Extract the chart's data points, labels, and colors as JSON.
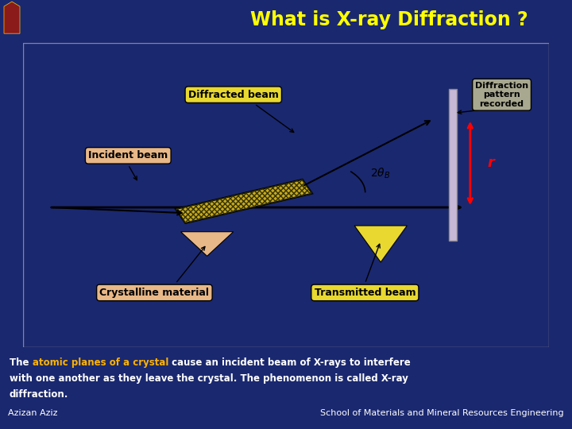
{
  "title": "What is X-ray Diffraction ?",
  "title_color": "#FFFF00",
  "header_bg": "#1a2870",
  "main_bg": "#f5eec8",
  "slide_bg": "#1a2870",
  "text_block_bg": "#8b1010",
  "text_line1_normal": "The ",
  "text_line1_highlight": "atomic planes of a crystal",
  "text_line1_rest": " cause an incident beam of X-rays to interfere",
  "text_line2": "with one another as they leave the crystal. The phenomenon is called X-ray",
  "text_line3": "diffraction.",
  "highlight_color": "#FFB300",
  "footer_left": "Azizan Aziz",
  "footer_right": "School of Materials and Mineral Resources Engineering",
  "footer_bg": "#1a2870",
  "label_incident": "Incident beam",
  "label_diffracted": "Diffracted beam",
  "label_transmitted": "Transmitted beam",
  "label_crystalline": "Crystalline material",
  "label_diffraction_pattern": "Diffraction\npattern\nrecorded",
  "label_r": "r",
  "callout_yellow": "#e8d830",
  "callout_peach": "#e8b888",
  "callout_gray": "#a8a890",
  "crystal_color": "#c8a820",
  "crystal_dark": "#403010"
}
